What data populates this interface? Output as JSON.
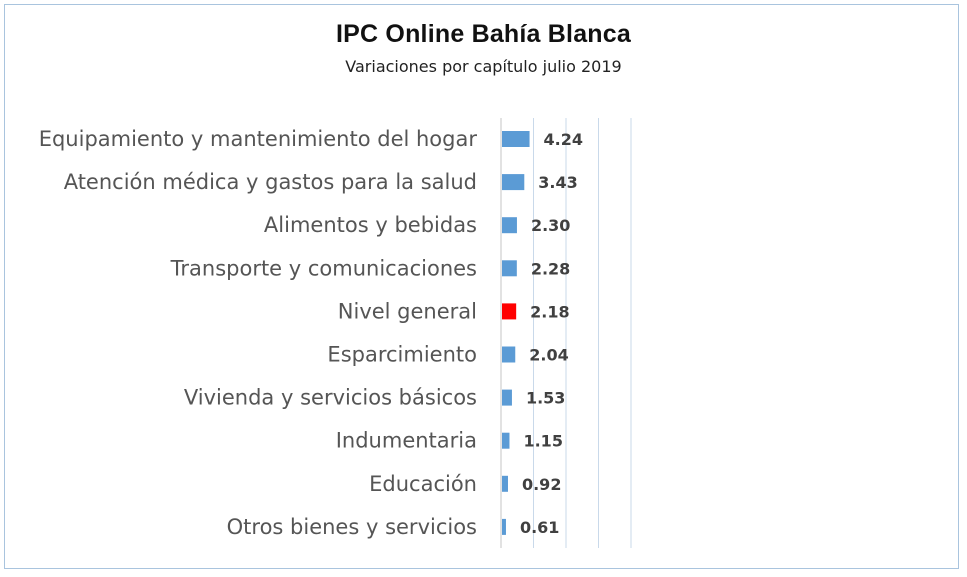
{
  "chart_data": {
    "type": "bar",
    "orientation": "horizontal",
    "title": "IPC Online Bahía Blanca",
    "subtitle": "Variaciones por capítulo julio 2019",
    "categories": [
      "Equipamiento y mantenimiento del hogar",
      "Atención médica y gastos para la salud",
      "Alimentos y bebidas",
      "Transporte y comunicaciones",
      "Nivel general",
      "Esparcimiento",
      "Vivienda y servicios básicos",
      "Indumentaria",
      "Educación",
      "Otros bienes y servicios"
    ],
    "values": [
      4.24,
      3.43,
      2.3,
      2.28,
      2.18,
      2.04,
      1.53,
      1.15,
      0.92,
      0.61
    ],
    "value_labels": [
      "4.24",
      "3.43",
      "2.30",
      "2.28",
      "2.18",
      "2.04",
      "1.53",
      "1.15",
      "0.92",
      "0.61"
    ],
    "xlim": [
      0,
      20
    ],
    "grid": "vertical",
    "colors": {
      "bar": "#5b9bd5",
      "highlight": "#ff0000",
      "grid": "#c9d9ea",
      "border": "#a9c4de"
    },
    "highlight_category": "Nivel general"
  }
}
